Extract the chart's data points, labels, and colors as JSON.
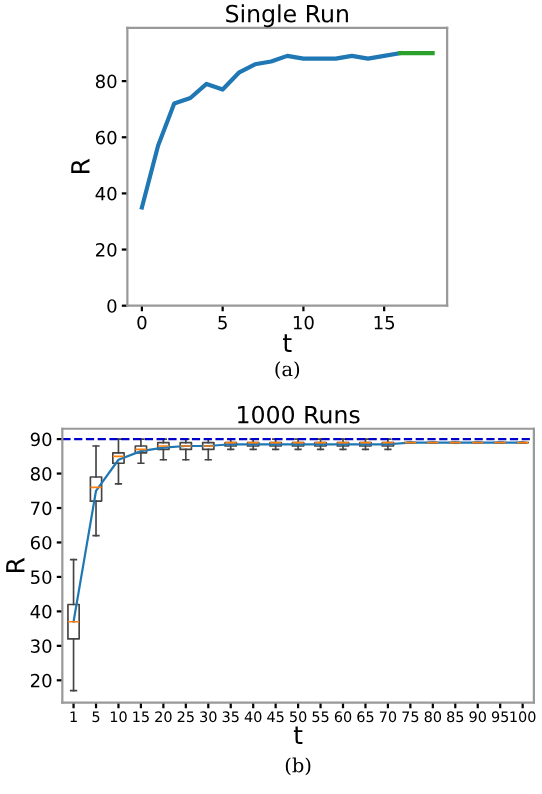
{
  "chart_data": [
    {
      "type": "line",
      "title": "Single Run",
      "xlabel": "t",
      "ylabel": "R",
      "annotations": [
        "(a)"
      ],
      "xlim": [
        -0.9,
        18.9
      ],
      "ylim": [
        0,
        99
      ],
      "xticks": [
        0,
        5,
        10,
        15
      ],
      "yticks": [
        0,
        20,
        40,
        60,
        80
      ],
      "grid": false,
      "legend": false,
      "series": [
        {
          "color": "#1f77b4",
          "x": [
            0,
            1,
            2,
            3,
            4,
            5,
            6,
            7,
            8,
            9,
            10,
            11,
            12,
            13,
            14,
            15,
            16
          ],
          "values": [
            35,
            57,
            72,
            74,
            79,
            77,
            83,
            86,
            87,
            89,
            88,
            88,
            88,
            89,
            88,
            89,
            90
          ]
        },
        {
          "color": "#2ca02c",
          "x": [
            16,
            17,
            18
          ],
          "values": [
            90,
            90,
            90
          ]
        }
      ]
    },
    {
      "type": "box",
      "title": "1000 Runs",
      "xlabel": "t",
      "ylabel": "R",
      "annotations": [
        "(b)"
      ],
      "ylim": [
        13.5,
        93
      ],
      "yticks": [
        20,
        30,
        40,
        50,
        60,
        70,
        80,
        90
      ],
      "grid": false,
      "legend": false,
      "categories": [
        "1",
        "5",
        "10",
        "15",
        "20",
        "25",
        "30",
        "35",
        "40",
        "45",
        "50",
        "55",
        "60",
        "65",
        "70",
        "75",
        "80",
        "85",
        "90",
        "95",
        "100"
      ],
      "boxes": [
        {
          "low": 17,
          "q1": 32,
          "median": 37,
          "q3": 42,
          "high": 55
        },
        {
          "low": 62,
          "q1": 72,
          "median": 76,
          "q3": 79,
          "high": 88
        },
        {
          "low": 77,
          "q1": 83,
          "median": 85,
          "q3": 86,
          "high": 90
        },
        {
          "low": 83,
          "q1": 86,
          "median": 87,
          "q3": 88,
          "high": 90
        },
        {
          "low": 84,
          "q1": 87,
          "median": 88,
          "q3": 89,
          "high": 90
        },
        {
          "low": 84,
          "q1": 87,
          "median": 88,
          "q3": 89,
          "high": 90
        },
        {
          "low": 84,
          "q1": 87,
          "median": 88,
          "q3": 89,
          "high": 90
        },
        {
          "low": 87,
          "q1": 88,
          "median": 89,
          "q3": 89,
          "high": 90
        },
        {
          "low": 87,
          "q1": 88,
          "median": 89,
          "q3": 89,
          "high": 90
        },
        {
          "low": 87,
          "q1": 88,
          "median": 89,
          "q3": 89,
          "high": 90
        },
        {
          "low": 87,
          "q1": 88,
          "median": 89,
          "q3": 89,
          "high": 90
        },
        {
          "low": 87,
          "q1": 88,
          "median": 89,
          "q3": 89,
          "high": 90
        },
        {
          "low": 87,
          "q1": 88,
          "median": 89,
          "q3": 89,
          "high": 90
        },
        {
          "low": 87,
          "q1": 88,
          "median": 89,
          "q3": 89,
          "high": 90
        },
        {
          "low": 87,
          "q1": 88,
          "median": 89,
          "q3": 89,
          "high": 90
        },
        {
          "low": 89,
          "q1": 89,
          "median": 89,
          "q3": 89,
          "high": 89
        },
        {
          "low": 89,
          "q1": 89,
          "median": 89,
          "q3": 89,
          "high": 89
        },
        {
          "low": 89,
          "q1": 89,
          "median": 89,
          "q3": 89,
          "high": 89
        },
        {
          "low": 89,
          "q1": 89,
          "median": 89,
          "q3": 89,
          "high": 89
        },
        {
          "low": 89,
          "q1": 89,
          "median": 89,
          "q3": 89,
          "high": 89
        },
        {
          "low": 89,
          "q1": 89,
          "median": 89,
          "q3": 89,
          "high": 89
        }
      ],
      "series": [
        {
          "type": "line",
          "color": "#1f77b4",
          "values": [
            37,
            75,
            84,
            86.5,
            87.5,
            88,
            88,
            88.5,
            88.5,
            88.5,
            88.5,
            88.5,
            88.5,
            88.5,
            88.5,
            89,
            89,
            89,
            89,
            89,
            89
          ]
        }
      ],
      "ref_lines": [
        {
          "axis": "y",
          "value": 90,
          "label": null,
          "color": "#0000cc",
          "line_style": "dashed"
        }
      ]
    }
  ]
}
